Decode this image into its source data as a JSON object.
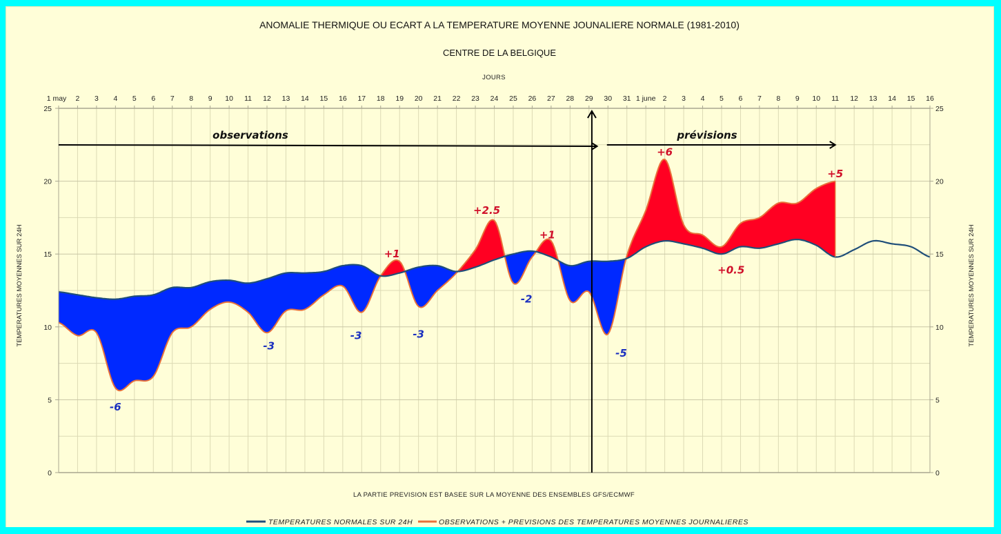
{
  "chart_data": {
    "type": "area",
    "title": "ANOMALIE THERMIQUE OU ECART A LA TEMPERATURE MOYENNE JOUNALIERE NORMALE (1981-2010)",
    "subtitle": "CENTRE DE LA BELGIQUE",
    "xlabel": "JOURS",
    "ylabel": "TEMPERATURES MOYENNES SUR 24H",
    "ylabel_right": "TEMPERATURES MOYENNES SUR 24H",
    "footnote": "LA PARTIE PREVISION EST BASEE SUR LA MOYENNE DES ENSEMBLES GFS/ECMWF",
    "ylim": [
      0,
      25
    ],
    "yticks": [
      0,
      5,
      10,
      15,
      20,
      25
    ],
    "grid": true,
    "legend_position": "bottom",
    "categories": [
      "1 may",
      "2",
      "3",
      "4",
      "5",
      "6",
      "7",
      "8",
      "9",
      "10",
      "11",
      "12",
      "13",
      "14",
      "15",
      "16",
      "17",
      "18",
      "19",
      "20",
      "21",
      "22",
      "23",
      "24",
      "25",
      "26",
      "27",
      "28",
      "29",
      "30",
      "31",
      "1 june",
      "2",
      "3",
      "4",
      "5",
      "6",
      "7",
      "8",
      "9",
      "10",
      "11",
      "12",
      "13",
      "14",
      "15",
      "16"
    ],
    "series": [
      {
        "name": "TEMPERATURES NORMALES SUR 24H",
        "color": "#1f4e79",
        "values": [
          12.4,
          12.2,
          12.0,
          11.9,
          12.1,
          12.2,
          12.7,
          12.7,
          13.1,
          13.2,
          13.0,
          13.3,
          13.7,
          13.7,
          13.8,
          14.2,
          14.2,
          13.5,
          13.7,
          14.1,
          14.2,
          13.8,
          14.1,
          14.6,
          15.0,
          15.2,
          14.8,
          14.2,
          14.5,
          14.5,
          14.7,
          15.5,
          15.9,
          15.7,
          15.4,
          15.0,
          15.5,
          15.4,
          15.7,
          16.0,
          15.6,
          14.8,
          15.3,
          15.9,
          15.7,
          15.5,
          14.8
        ]
      },
      {
        "name": "OBSERVATIONS + PREVISIONS DES TEMPERATURES MOYENNES JOURNALIERES",
        "color": "#e8703a",
        "values": [
          10.3,
          9.4,
          9.6,
          5.8,
          6.3,
          6.6,
          9.6,
          10.0,
          11.2,
          11.7,
          11.0,
          9.6,
          11.1,
          11.2,
          12.2,
          12.8,
          11.0,
          13.5,
          14.5,
          11.4,
          12.5,
          13.7,
          15.3,
          17.3,
          13.0,
          14.8,
          15.9,
          11.8,
          12.4,
          9.5,
          14.9,
          18.0,
          21.5,
          17.0,
          16.3,
          15.5,
          17.1,
          17.5,
          18.5,
          18.5,
          19.5,
          20.0
        ]
      }
    ],
    "fill_colors": {
      "below_normal": "#0029ff",
      "above_normal": "#ff0022"
    },
    "annotations": [
      {
        "text": "-6",
        "day_index": 3.0,
        "value": 4.5,
        "color": "#1a2fbf"
      },
      {
        "text": "-3",
        "day_index": 11.1,
        "value": 8.7,
        "color": "#1a2fbf"
      },
      {
        "text": "-3",
        "day_index": 15.7,
        "value": 9.4,
        "color": "#1a2fbf"
      },
      {
        "text": "-3",
        "day_index": 19.0,
        "value": 9.5,
        "color": "#1a2fbf"
      },
      {
        "text": "+1",
        "day_index": 17.6,
        "value": 15.0,
        "color": "#d0102a"
      },
      {
        "text": "+2.5",
        "day_index": 22.6,
        "value": 18.0,
        "color": "#d0102a"
      },
      {
        "text": "-2",
        "day_index": 24.7,
        "value": 11.9,
        "color": "#1a2fbf"
      },
      {
        "text": "+1",
        "day_index": 25.8,
        "value": 16.3,
        "color": "#d0102a"
      },
      {
        "text": "-5",
        "day_index": 29.7,
        "value": 8.2,
        "color": "#1a2fbf"
      },
      {
        "text": "+6",
        "day_index": 32.0,
        "value": 22.0,
        "color": "#d0102a"
      },
      {
        "text": "+0.5",
        "day_index": 35.5,
        "value": 13.9,
        "color": "#d0102a"
      },
      {
        "text": "+5",
        "day_index": 41.0,
        "value": 20.5,
        "color": "#d0102a"
      }
    ],
    "phases": [
      {
        "text": "observations",
        "from_index": 0,
        "to_index": 28.5
      },
      {
        "text": "prévisions",
        "from_index": 28.8,
        "to_index": 41.0
      }
    ],
    "divider_day_index": 28.15
  }
}
